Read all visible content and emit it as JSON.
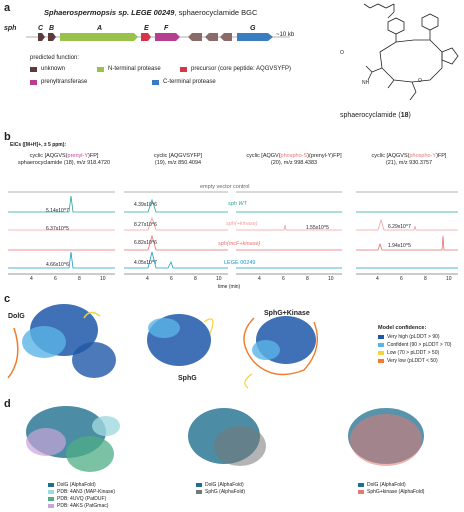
{
  "panel_a": {
    "letter": "a",
    "title_italic": "Sphaerospermopsis sp. LEGE 00249",
    "title_rest": ", sphaerocyclamide BGC",
    "gene_labels": [
      "sph",
      "C",
      "B",
      "A",
      "E",
      "F",
      "G"
    ],
    "scale_label": "~10 kb",
    "legend_title": "predicted function:",
    "legend": [
      {
        "label": "unknown",
        "color": "#5b3c3c"
      },
      {
        "label": "N-terminal protease",
        "color": "#9ac24a"
      },
      {
        "label": "precursor (core peptide: AQGVSYFP)",
        "color": "#d6354a"
      },
      {
        "label": "prenyltransferase",
        "color": "#b53e8f"
      },
      {
        "label": "C-terminal protease",
        "color": "#3a7cc0"
      }
    ],
    "compound_name": "sphaerocyclamide (",
    "compound_num": "18",
    "compound_close": ")"
  },
  "panel_b": {
    "letter": "b",
    "eic_title": "EICs ([M+H]+, ± 5 ppm):",
    "headers": [
      {
        "l1a": "cyclic [AQGVS(",
        "l1b": "prenyl-Y",
        "l1c": ")FP]",
        "l2": "sphaerocyclamide (18), m/z 918.4720"
      },
      {
        "l1a": "cyclic [AQGVSYFP]",
        "l1b": "",
        "l1c": "",
        "l2": "(19), m/z 850.4094"
      },
      {
        "l1a": "cyclic [AQGV(",
        "l1b": "phospho-S",
        "l1c": ")(prenyl-Y)FP]",
        "l2": "(20), m/z 998.4383"
      },
      {
        "l1a": "cyclic [AQGVS(",
        "l1b": "phospho-Y",
        "l1c": ")FP]",
        "l2": "(21), m/z 930.3757"
      }
    ],
    "traces": [
      {
        "label": "empty vector control",
        "color": "#888888"
      },
      {
        "label": "sph WT",
        "color": "#26a69a"
      },
      {
        "label": "sph(+kinase)",
        "color": "#f2a0a0"
      },
      {
        "label": "sph(mcF+kinase)",
        "color": "#e67070"
      },
      {
        "label": "LEGE 00249",
        "color": "#1a9ccc"
      }
    ],
    "intensities": [
      [
        "5.14x10^7",
        "6.37x10^5",
        "4.66x10^6"
      ],
      [
        "4.39x10^6",
        "8.27x10^6",
        "6.82x10^6",
        "4.05x10^7"
      ],
      [
        "1.55x10^5"
      ],
      [
        "6.29x10^7",
        "1.94x10^5"
      ]
    ],
    "x_ticks": [
      "4",
      "6",
      "8",
      "10"
    ],
    "x_label": "time (min)"
  },
  "panel_c": {
    "letter": "c",
    "labels": [
      "DolG",
      "SphG",
      "SphG+Kinase"
    ],
    "confidence_title": "Model confidence:",
    "confidence": [
      {
        "label": "Very high (pLDDT > 90)",
        "color": "#1f57a8"
      },
      {
        "label": "Confident (90 > pLDDT > 70)",
        "color": "#5ab4e6"
      },
      {
        "label": "Low (70 > pLDDT > 50)",
        "color": "#f5d33a"
      },
      {
        "label": "Very low (pLDDT < 50)",
        "color": "#f07b2c"
      }
    ]
  },
  "panel_d": {
    "letter": "d",
    "legend1": [
      {
        "label": "DolG (AlphaFold)",
        "color": "#1f6f8f"
      },
      {
        "label": "PDB: 4AN3 (MAP-Kinase)",
        "color": "#9fd8df"
      },
      {
        "label": "PDB: 4UVQ (PatDUF)",
        "color": "#4fae85"
      },
      {
        "label": "PDB: 4AKS (PatGmac)",
        "color": "#c9a4d8"
      }
    ],
    "legend2": [
      {
        "label": "DolG (AlphaFold)",
        "color": "#1f6f8f"
      },
      {
        "label": "SphG (AlphaFold)",
        "color": "#777777"
      }
    ],
    "legend3": [
      {
        "label": "DolG (AlphaFold)",
        "color": "#1f6f8f"
      },
      {
        "label": "SphG+kinase (AlphaFold)",
        "color": "#e07a72"
      }
    ]
  }
}
